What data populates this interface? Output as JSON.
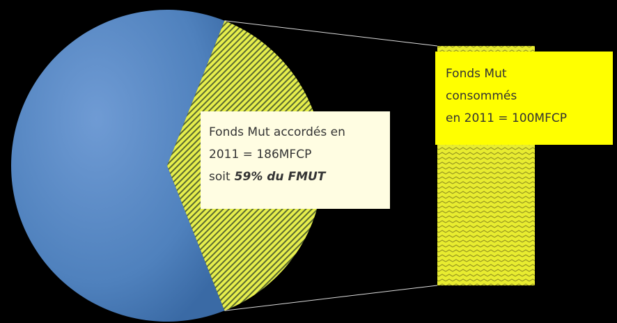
{
  "chart_data": {
    "type": "pie-of-bar",
    "values": [
      62,
      38
    ],
    "colors": [
      "#4f81bd",
      "#e6ee4c"
    ],
    "annotations": [
      {
        "lines": [
          "Fonds Mut  accordés en",
          "2011 = 186MFCP",
          "soit"
        ],
        "emphasis": "59% du FMUT"
      },
      {
        "lines": [
          "Fonds Mut",
          "consommés",
          "en  2011 = 100MFCP"
        ]
      }
    ]
  }
}
